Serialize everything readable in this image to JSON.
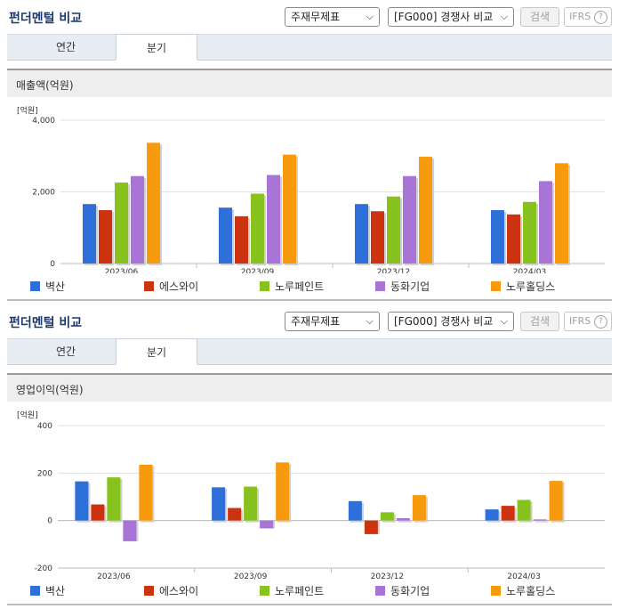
{
  "panels": [
    {
      "title": "펀더멘털 비교",
      "select_statement": "주재무제표",
      "select_compare": "[FG000] 경쟁사 비교",
      "search_label": "검색",
      "ifrs_label": "IFRS",
      "help_glyph": "?",
      "tabs": [
        {
          "label": "연간"
        },
        {
          "label": "분기",
          "active": true
        }
      ],
      "section_title": "매출액(억원)",
      "legend": [
        "벽산",
        "에스와이",
        "노루페인트",
        "동화기업",
        "노루홀딩스"
      ]
    },
    {
      "title": "펀더멘털 비교",
      "select_statement": "주재무제표",
      "select_compare": "[FG000] 경쟁사 비교",
      "search_label": "검색",
      "ifrs_label": "IFRS",
      "help_glyph": "?",
      "tabs": [
        {
          "label": "연간"
        },
        {
          "label": "분기",
          "active": true
        }
      ],
      "section_title": "영업이익(억원)",
      "legend": [
        "벽산",
        "에스와이",
        "노루페인트",
        "동화기업",
        "노루홀딩스"
      ]
    }
  ],
  "colors": [
    "#2e6fd9",
    "#cc3311",
    "#88c21e",
    "#a874d6",
    "#f79a0d"
  ],
  "chart_data": [
    {
      "type": "bar",
      "unit_label": "[억원]",
      "categories": [
        "2023/06",
        "2023/09",
        "2023/12",
        "2024/03"
      ],
      "ylim": [
        0,
        4000
      ],
      "yticks": [
        0,
        2000,
        4000
      ],
      "ytick_labels": [
        "0",
        "2,000",
        "4,000"
      ],
      "grid": true,
      "series": [
        {
          "name": "벽산",
          "values": [
            1660,
            1560,
            1660,
            1490
          ]
        },
        {
          "name": "에스와이",
          "values": [
            1490,
            1320,
            1460,
            1370
          ]
        },
        {
          "name": "노루페인트",
          "values": [
            2260,
            1950,
            1870,
            1720
          ]
        },
        {
          "name": "동화기업",
          "values": [
            2440,
            2470,
            2440,
            2300
          ]
        },
        {
          "name": "노루홀딩스",
          "values": [
            3370,
            3040,
            2980,
            2800
          ]
        }
      ]
    },
    {
      "type": "bar",
      "unit_label": "[억원]",
      "categories": [
        "2023/06",
        "2023/09",
        "2023/12",
        "2024/03"
      ],
      "ylim": [
        -200,
        400
      ],
      "yticks": [
        -200,
        0,
        200,
        400
      ],
      "ytick_labels": [
        "-200",
        "0",
        "200",
        "400"
      ],
      "grid": true,
      "series": [
        {
          "name": "벽산",
          "values": [
            165,
            140,
            82,
            47
          ]
        },
        {
          "name": "에스와이",
          "values": [
            68,
            53,
            -57,
            62
          ]
        },
        {
          "name": "노루페인트",
          "values": [
            182,
            143,
            35,
            87
          ]
        },
        {
          "name": "동화기업",
          "values": [
            -87,
            -33,
            10,
            5
          ]
        },
        {
          "name": "노루홀딩스",
          "values": [
            235,
            245,
            107,
            167
          ]
        }
      ]
    }
  ]
}
